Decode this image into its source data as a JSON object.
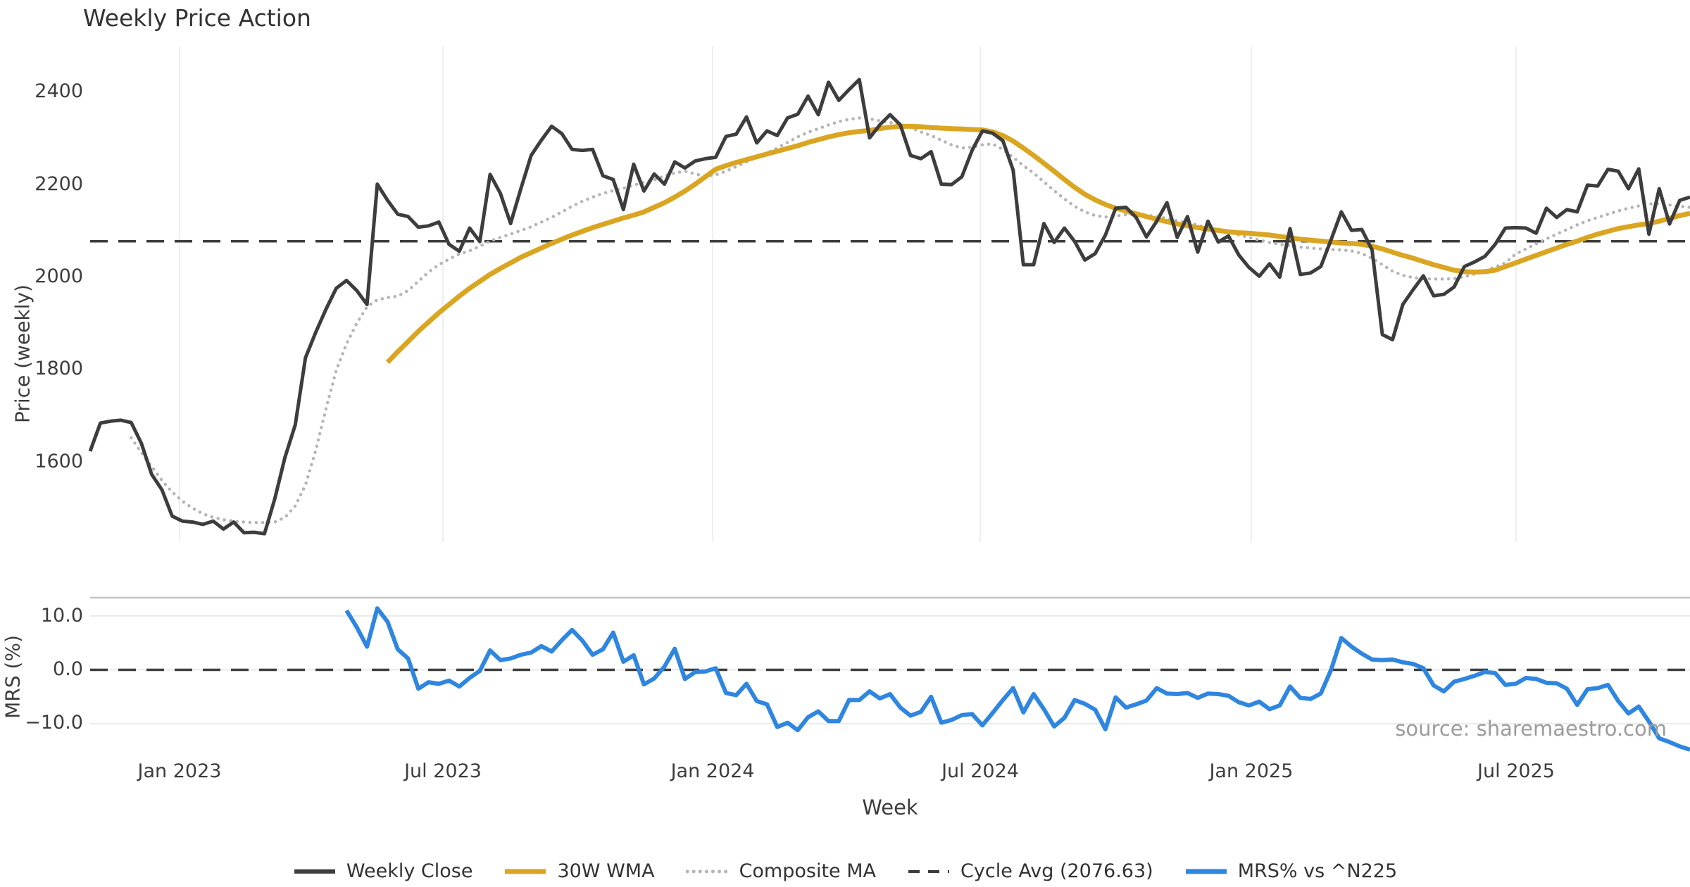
{
  "title": "Weekly Price Action",
  "source_note": "source: sharemaestro.com",
  "legend": [
    {
      "label": "Weekly Close",
      "color": "#3d3d3d",
      "style": "solid",
      "width": 6
    },
    {
      "label": "30W WMA",
      "color": "#DAA520",
      "style": "solid",
      "width": 7
    },
    {
      "label": "Composite MA",
      "color": "#b5b5b5",
      "style": "dotted",
      "width": 5
    },
    {
      "label": "Cycle Avg (2076.63)",
      "color": "#3d3d3d",
      "style": "dashed",
      "width": 4
    },
    {
      "label": "MRS% vs ^N225",
      "color": "#2f86e0",
      "style": "solid",
      "width": 7
    }
  ],
  "chart_data": [
    {
      "type": "line",
      "panel": "price",
      "title": "Weekly Price Action",
      "xlabel": "Week",
      "ylabel": "Price (weekly)",
      "x_unit": "weeks from 2022-10-31",
      "x_range_weeks": [
        0,
        156
      ],
      "ylim": [
        1430,
        2500
      ],
      "yticks": [
        2400,
        2200,
        2000,
        1800,
        1600
      ],
      "grid": "vertical-only",
      "cycle_avg": 2076.63,
      "x_ticks": [
        {
          "week": 8.72,
          "label": "Jan 2023"
        },
        {
          "week": 34.4,
          "label": "Jul 2023"
        },
        {
          "week": 60.7,
          "label": "Jan 2024"
        },
        {
          "week": 86.79,
          "label": "Jul 2024"
        },
        {
          "week": 113.22,
          "label": "Jan 2025"
        },
        {
          "week": 139.04,
          "label": "Jul 2025"
        }
      ],
      "series": [
        {
          "name": "Weekly Close",
          "color": "#3d3d3d",
          "style": "solid",
          "width": 5,
          "start_week": 0,
          "values": [
            1623,
            1684,
            1688,
            1690,
            1685,
            1640,
            1573,
            1540,
            1483,
            1472,
            1470,
            1465,
            1472,
            1455,
            1470,
            1447,
            1448,
            1445,
            1520,
            1610,
            1680,
            1825,
            1880,
            1930,
            1975,
            1992,
            1970,
            1940,
            2200,
            2165,
            2135,
            2130,
            2107,
            2110,
            2118,
            2070,
            2055,
            2105,
            2076,
            2221,
            2180,
            2115,
            2190,
            2262,
            2295,
            2325,
            2309,
            2275,
            2273,
            2275,
            2218,
            2210,
            2145,
            2243,
            2185,
            2222,
            2200,
            2248,
            2235,
            2250,
            2255,
            2258,
            2303,
            2308,
            2345,
            2289,
            2315,
            2305,
            2343,
            2351,
            2390,
            2350,
            2420,
            2381,
            2404,
            2426,
            2300,
            2328,
            2350,
            2328,
            2262,
            2255,
            2270,
            2200,
            2199,
            2216,
            2273,
            2315,
            2310,
            2294,
            2230,
            2026,
            2026,
            2115,
            2074,
            2105,
            2076,
            2036,
            2050,
            2090,
            2148,
            2150,
            2128,
            2086,
            2120,
            2160,
            2085,
            2130,
            2053,
            2120,
            2075,
            2088,
            2047,
            2020,
            2001,
            2028,
            1999,
            2104,
            2005,
            2008,
            2022,
            2080,
            2140,
            2100,
            2102,
            2058,
            1875,
            1864,
            1940,
            1972,
            2002,
            1959,
            1962,
            1978,
            2022,
            2032,
            2044,
            2070,
            2105,
            2106,
            2105,
            2094,
            2148,
            2128,
            2145,
            2140,
            2198,
            2196,
            2232,
            2228,
            2190,
            2233,
            2092,
            2190,
            2114,
            2165,
            2172
          ]
        },
        {
          "name": "30W WMA",
          "color": "#DAA520",
          "style": "solid",
          "width": 7,
          "start_week": 29,
          "values": [
            1815,
            1838,
            1860,
            1882,
            1902,
            1922,
            1940,
            1958,
            1975,
            1990,
            2005,
            2018,
            2030,
            2042,
            2052,
            2062,
            2072,
            2081,
            2090,
            2098,
            2106,
            2113,
            2120,
            2127,
            2133,
            2140,
            2150,
            2160,
            2172,
            2185,
            2200,
            2216,
            2232,
            2240,
            2247,
            2253,
            2259,
            2265,
            2271,
            2277,
            2283,
            2290,
            2296,
            2302,
            2307,
            2311,
            2314,
            2316,
            2320,
            2323,
            2325,
            2325,
            2324,
            2322,
            2321,
            2320,
            2319,
            2318,
            2317,
            2313,
            2305,
            2293,
            2278,
            2262,
            2245,
            2228,
            2210,
            2193,
            2178,
            2166,
            2156,
            2148,
            2142,
            2136,
            2130,
            2124,
            2119,
            2114,
            2110,
            2106,
            2103,
            2100,
            2097,
            2095,
            2094,
            2092,
            2090,
            2087,
            2084,
            2081,
            2079,
            2077,
            2075,
            2073,
            2072,
            2070,
            2066,
            2060,
            2053,
            2046,
            2040,
            2033,
            2026,
            2020,
            2014,
            2011,
            2010,
            2011,
            2014,
            2022,
            2030,
            2038,
            2046,
            2054,
            2062,
            2070,
            2077,
            2085,
            2092,
            2098,
            2104,
            2108,
            2112,
            2115,
            2120,
            2126,
            2132,
            2137
          ]
        },
        {
          "name": "Composite MA",
          "color": "#b5b5b5",
          "style": "dotted",
          "width": 4.5,
          "start_week": 4,
          "values": [
            1652,
            1620,
            1590,
            1560,
            1535,
            1515,
            1500,
            1488,
            1480,
            1475,
            1472,
            1470,
            1469,
            1469,
            1470,
            1480,
            1505,
            1550,
            1625,
            1715,
            1798,
            1855,
            1900,
            1935,
            1950,
            1955,
            1958,
            1970,
            1990,
            2010,
            2026,
            2038,
            2049,
            2056,
            2066,
            2077,
            2085,
            2092,
            2100,
            2108,
            2118,
            2128,
            2140,
            2152,
            2163,
            2172,
            2180,
            2186,
            2191,
            2198,
            2204,
            2209,
            2218,
            2224,
            2228,
            2222,
            2217,
            2220,
            2228,
            2238,
            2248,
            2258,
            2267,
            2278,
            2290,
            2302,
            2312,
            2320,
            2328,
            2335,
            2340,
            2343,
            2341,
            2337,
            2333,
            2330,
            2322,
            2313,
            2305,
            2295,
            2285,
            2278,
            2280,
            2285,
            2287,
            2275,
            2258,
            2240,
            2224,
            2205,
            2186,
            2168,
            2152,
            2140,
            2132,
            2129,
            2131,
            2134,
            2134,
            2133,
            2130,
            2126,
            2121,
            2116,
            2112,
            2104,
            2100,
            2096,
            2090,
            2085,
            2079,
            2074,
            2070,
            2067,
            2064,
            2062,
            2060,
            2059,
            2058,
            2056,
            2050,
            2040,
            2026,
            2012,
            2003,
            1998,
            1996,
            1995,
            1995,
            1996,
            2000,
            2006,
            2013,
            2021,
            2030,
            2049,
            2060,
            2071,
            2082,
            2092,
            2102,
            2112,
            2121,
            2128,
            2135,
            2142,
            2148,
            2153,
            2157,
            2158,
            2155,
            2152,
            2150
          ]
        }
      ]
    },
    {
      "type": "line",
      "panel": "mrs",
      "ylabel": "MRS (%)",
      "ylim": [
        -16.5,
        13.4
      ],
      "yticks": [
        10.0,
        0.0,
        -10.0
      ],
      "ytick_labels": [
        "10.0",
        "0.0",
        "−10.0"
      ],
      "zero_line": 0.0,
      "grid": "horizontal-only",
      "series": [
        {
          "name": "MRS% vs ^N225",
          "color": "#2f86e0",
          "style": "solid",
          "width": 6,
          "start_week": 25,
          "values": [
            11.0,
            7.9,
            4.3,
            11.4,
            8.9,
            3.8,
            2.1,
            -3.5,
            -2.3,
            -2.6,
            -2.0,
            -3.1,
            -1.5,
            -0.2,
            3.6,
            1.8,
            2.1,
            2.8,
            3.2,
            4.4,
            3.4,
            5.5,
            7.4,
            5.4,
            2.8,
            3.8,
            6.9,
            1.5,
            2.7,
            -2.7,
            -1.6,
            0.6,
            3.9,
            -1.7,
            -0.4,
            -0.3,
            0.3,
            -4.3,
            -4.7,
            -2.6,
            -5.8,
            -6.4,
            -10.6,
            -9.8,
            -11.2,
            -8.8,
            -7.7,
            -9.5,
            -9.5,
            -5.6,
            -5.6,
            -4.0,
            -5.3,
            -4.5,
            -7.0,
            -8.5,
            -7.8,
            -5.0,
            -9.8,
            -9.3,
            -8.4,
            -8.2,
            -10.3,
            -8.0,
            -5.6,
            -3.4,
            -7.9,
            -4.5,
            -7.3,
            -10.5,
            -8.9,
            -5.6,
            -6.3,
            -7.4,
            -11.0,
            -5.1,
            -7.0,
            -6.4,
            -5.7,
            -3.4,
            -4.4,
            -4.5,
            -4.3,
            -5.2,
            -4.4,
            -4.5,
            -4.8,
            -6.0,
            -6.6,
            -5.9,
            -7.3,
            -6.6,
            -3.1,
            -5.2,
            -5.4,
            -4.4,
            0.0,
            5.9,
            4.3,
            3.0,
            1.9,
            1.8,
            1.9,
            1.4,
            1.1,
            0.3,
            -2.9,
            -4.0,
            -2.2,
            -1.7,
            -1.1,
            -0.4,
            -0.6,
            -2.8,
            -2.6,
            -1.5,
            -1.7,
            -2.4,
            -2.5,
            -3.5,
            -6.5,
            -3.6,
            -3.4,
            -2.8,
            -5.8,
            -8.1,
            -6.8,
            -9.6,
            -12.7,
            -13.4,
            -14.2,
            -14.8
          ]
        }
      ]
    }
  ]
}
